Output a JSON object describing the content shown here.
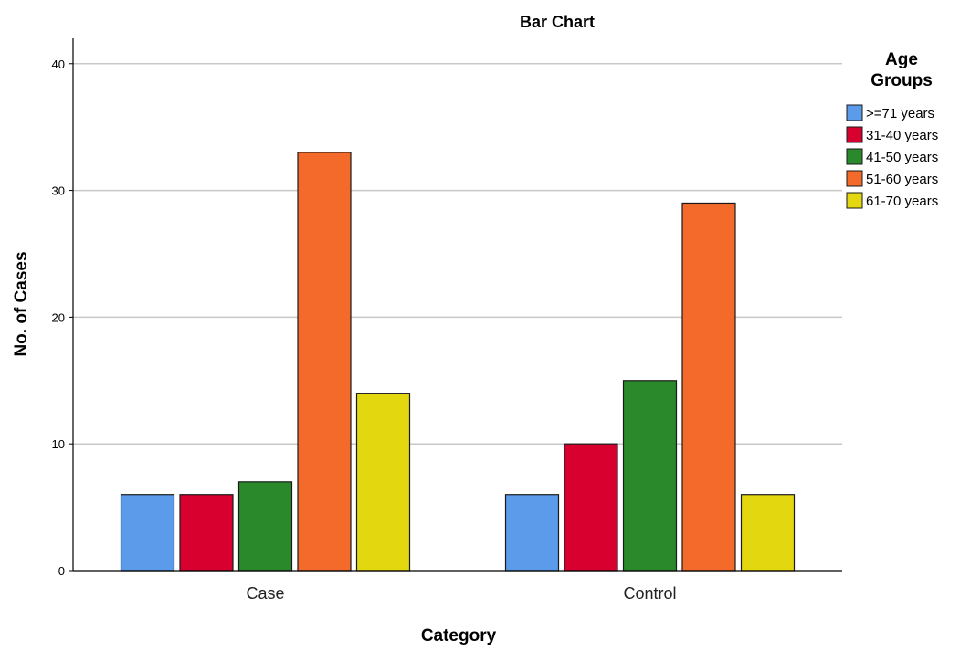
{
  "chart_data": {
    "type": "bar",
    "title": "Bar Chart",
    "xlabel": "Category",
    "ylabel": "No. of Cases",
    "categories": [
      "Case",
      "Control"
    ],
    "ylim": [
      0,
      42
    ],
    "yticks": [
      0,
      10,
      20,
      30,
      40
    ],
    "grid": true,
    "legend": {
      "title": [
        "Age",
        "Groups"
      ],
      "placement": "right"
    },
    "series": [
      {
        "name": ">=71 years",
        "color": "#5b9bea",
        "values": [
          6,
          6
        ]
      },
      {
        "name": "31-40 years",
        "color": "#d7002f",
        "values": [
          6,
          10
        ]
      },
      {
        "name": "41-50 years",
        "color": "#2a8a2b",
        "values": [
          7,
          15
        ]
      },
      {
        "name": "51-60 years",
        "color": "#f36a2b",
        "values": [
          33,
          29
        ]
      },
      {
        "name": "61-70 years",
        "color": "#e3d80f",
        "values": [
          14,
          6
        ]
      }
    ]
  }
}
